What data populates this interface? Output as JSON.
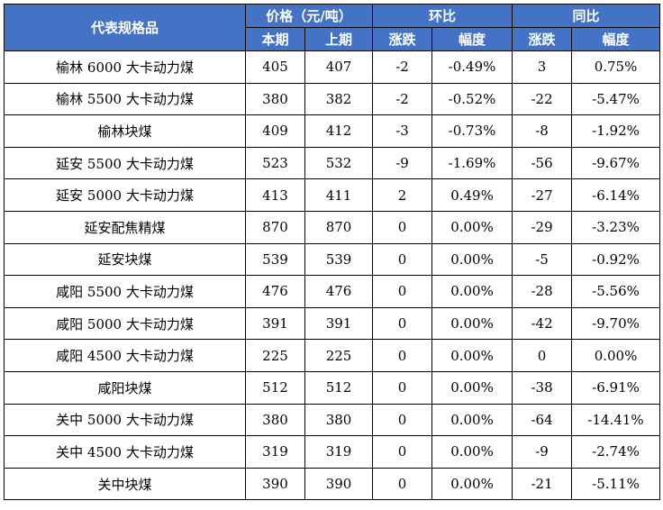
{
  "header": {
    "spec": "代表规格品",
    "price_group": "价格（元/吨）",
    "mom_group": "环比",
    "yoy_group": "同比",
    "current": "本期",
    "previous": "上期",
    "mom_change": "涨跌",
    "mom_pct": "幅度",
    "yoy_change": "涨跌",
    "yoy_pct": "幅度"
  },
  "rows": [
    [
      "榆林 6000 大卡动力煤",
      "405",
      "407",
      "-2",
      "-0.49%",
      "3",
      "0.75%"
    ],
    [
      "榆林 5500 大卡动力煤",
      "380",
      "382",
      "-2",
      "-0.52%",
      "-22",
      "-5.47%"
    ],
    [
      "榆林块煤",
      "409",
      "412",
      "-3",
      "-0.73%",
      "-8",
      "-1.92%"
    ],
    [
      "延安 5500 大卡动力煤",
      "523",
      "532",
      "-9",
      "-1.69%",
      "-56",
      "-9.67%"
    ],
    [
      "延安 5000 大卡动力煤",
      "413",
      "411",
      "2",
      "0.49%",
      "-27",
      "-6.14%"
    ],
    [
      "延安配焦精煤",
      "870",
      "870",
      "0",
      "0.00%",
      "-29",
      "-3.23%"
    ],
    [
      "延安块煤",
      "539",
      "539",
      "0",
      "0.00%",
      "-5",
      "-0.92%"
    ],
    [
      "咸阳 5500 大卡动力煤",
      "476",
      "476",
      "0",
      "0.00%",
      "-28",
      "-5.56%"
    ],
    [
      "咸阳 5000 大卡动力煤",
      "391",
      "391",
      "0",
      "0.00%",
      "-42",
      "-9.70%"
    ],
    [
      "咸阳 4500 大卡动力煤",
      "225",
      "225",
      "0",
      "0.00%",
      "0",
      "0.00%"
    ],
    [
      "咸阳块煤",
      "512",
      "512",
      "0",
      "0.00%",
      "-38",
      "-6.91%"
    ],
    [
      "关中 5000 大卡动力煤",
      "380",
      "380",
      "0",
      "0.00%",
      "-64",
      "-14.41%"
    ],
    [
      "关中 4500 大卡动力煤",
      "319",
      "319",
      "0",
      "0.00%",
      "-9",
      "-2.74%"
    ],
    [
      "关中块煤",
      "390",
      "390",
      "0",
      "0.00%",
      "-21",
      "-5.11%"
    ]
  ]
}
